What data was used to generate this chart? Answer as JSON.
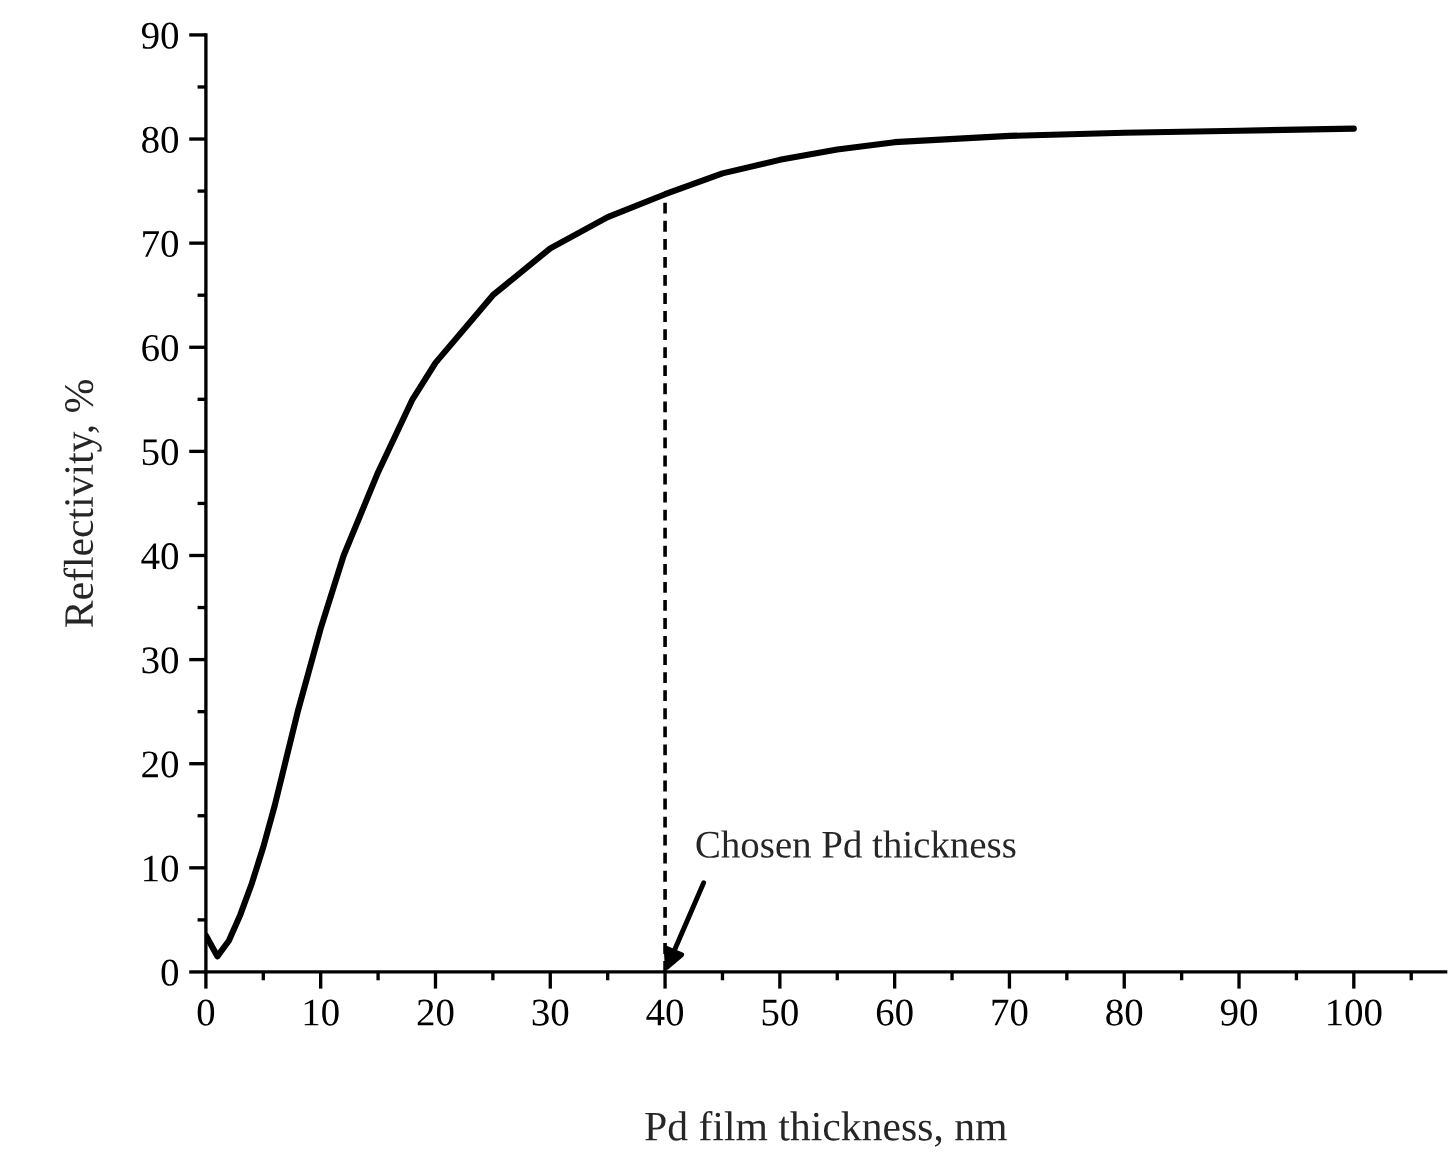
{
  "chart_data": {
    "type": "line",
    "xlabel": "Pd film thickness, nm",
    "ylabel": "Reflectivity, %",
    "series": [
      {
        "color": "#000000",
        "x": [
          0,
          1,
          2,
          3,
          4,
          5,
          6,
          7,
          8,
          10,
          12,
          15,
          18,
          20,
          25,
          30,
          35,
          40,
          45,
          50,
          55,
          60,
          70,
          80,
          90,
          100
        ],
        "values": [
          3.5,
          1.5,
          3,
          5.5,
          8.5,
          12,
          16,
          20.5,
          25,
          33,
          40,
          48,
          55,
          58.5,
          65,
          69.5,
          72.5,
          74.7,
          76.7,
          78,
          79,
          79.7,
          80.3,
          80.6,
          80.8,
          81
        ]
      }
    ],
    "ref_lines": [
      {
        "axis": "x",
        "value": 40,
        "color": "#000000",
        "line_style": "dashed"
      }
    ],
    "annotations": [
      {
        "text": "Chosen Pd thickness",
        "x": 40,
        "y": 0
      }
    ],
    "xlim": [
      0,
      108
    ],
    "xticks": [
      0,
      10,
      20,
      30,
      40,
      50,
      60,
      70,
      80,
      90,
      100
    ],
    "ylim": [
      0,
      90
    ],
    "yticks": [
      0,
      10,
      20,
      30,
      40,
      50,
      60,
      70,
      80,
      90
    ],
    "line_style": "solid",
    "marker": "none"
  }
}
